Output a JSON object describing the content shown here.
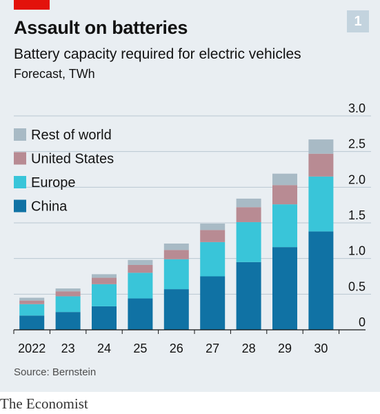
{
  "header": {
    "title": "Assault on batteries",
    "subtitle": "Battery capacity required for electric vehicles",
    "unit": "Forecast, TWh",
    "badge": "1"
  },
  "footer": {
    "source": "Source: Bernstein",
    "brand": "The Economist"
  },
  "colors": {
    "background": "#e9eef2",
    "accent_red": "#e3120b",
    "China": "#1072a4",
    "Europe": "#39c5d9",
    "United States": "#b88b93",
    "Rest of world": "#a8bac5"
  },
  "chart_data": {
    "type": "bar",
    "stacked": true,
    "categories": [
      "2022",
      "23",
      "24",
      "25",
      "26",
      "27",
      "28",
      "29",
      "30"
    ],
    "series": [
      {
        "name": "China",
        "values": [
          0.2,
          0.25,
          0.33,
          0.44,
          0.57,
          0.75,
          0.95,
          1.16,
          1.38
        ]
      },
      {
        "name": "Europe",
        "values": [
          0.16,
          0.22,
          0.31,
          0.36,
          0.42,
          0.48,
          0.56,
          0.6,
          0.77
        ]
      },
      {
        "name": "United States",
        "values": [
          0.05,
          0.07,
          0.09,
          0.11,
          0.13,
          0.17,
          0.21,
          0.27,
          0.32
        ]
      },
      {
        "name": "Rest of world",
        "values": [
          0.04,
          0.04,
          0.05,
          0.07,
          0.09,
          0.09,
          0.12,
          0.16,
          0.2
        ]
      }
    ],
    "legend_order": [
      "Rest of world",
      "United States",
      "Europe",
      "China"
    ],
    "y_ticks": [
      "0",
      "0.5",
      "1.0",
      "1.5",
      "2.0",
      "2.5",
      "3.0"
    ],
    "ylim": [
      0,
      3
    ],
    "y_axis_position": "right",
    "grid": true,
    "legend_position": "top-left"
  }
}
